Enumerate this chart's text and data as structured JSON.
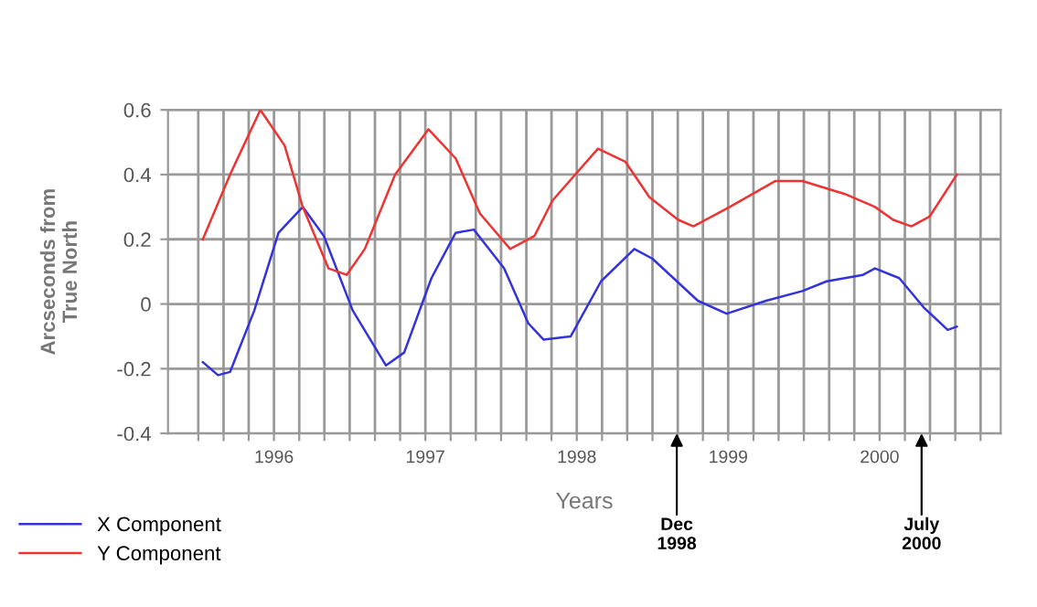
{
  "chart_data": {
    "type": "line",
    "xlabel": "Years",
    "ylabel": "Arcseconds from\nTrue North",
    "xlim": [
      1995.8,
      2001.3
    ],
    "ylim": [
      -0.4,
      0.6
    ],
    "yticks": [
      -0.4,
      -0.2,
      0,
      0.2,
      0.4,
      0.6
    ],
    "xticks": [
      {
        "value": 1996.0,
        "label": null
      },
      {
        "value": 1996.167,
        "label": null
      },
      {
        "value": 1996.333,
        "label": null
      },
      {
        "value": 1996.5,
        "label": "1996"
      },
      {
        "value": 1996.667,
        "label": null
      },
      {
        "value": 1996.833,
        "label": null
      },
      {
        "value": 1997.0,
        "label": null
      },
      {
        "value": 1997.167,
        "label": null
      },
      {
        "value": 1997.333,
        "label": null
      },
      {
        "value": 1997.5,
        "label": "1997"
      },
      {
        "value": 1997.667,
        "label": null
      },
      {
        "value": 1997.833,
        "label": null
      },
      {
        "value": 1998.0,
        "label": null
      },
      {
        "value": 1998.167,
        "label": null
      },
      {
        "value": 1998.333,
        "label": null
      },
      {
        "value": 1998.5,
        "label": "1998"
      },
      {
        "value": 1998.667,
        "label": null
      },
      {
        "value": 1998.833,
        "label": null
      },
      {
        "value": 1999.0,
        "label": null
      },
      {
        "value": 1999.167,
        "label": null
      },
      {
        "value": 1999.333,
        "label": null
      },
      {
        "value": 1999.5,
        "label": "1999"
      },
      {
        "value": 1999.667,
        "label": null
      },
      {
        "value": 1999.833,
        "label": null
      },
      {
        "value": 2000.0,
        "label": null
      },
      {
        "value": 2000.167,
        "label": null
      },
      {
        "value": 2000.333,
        "label": null
      },
      {
        "value": 2000.5,
        "label": "2000"
      },
      {
        "value": 2000.667,
        "label": null
      },
      {
        "value": 2000.833,
        "label": null
      },
      {
        "value": 2001.0,
        "label": null
      },
      {
        "value": 2001.167,
        "label": null
      }
    ],
    "grid": true,
    "legend": "bottom left",
    "marker": "none",
    "line_style": "solid",
    "annotations": [
      "Dec\n1998",
      "July\n2000"
    ],
    "series": [
      {
        "name": "X Component",
        "color": "#3333dd",
        "x": [
          1996.03,
          1996.13,
          1996.21,
          1996.37,
          1996.53,
          1996.69,
          1996.83,
          1997.02,
          1997.24,
          1997.36,
          1997.54,
          1997.7,
          1997.82,
          1998.02,
          1998.18,
          1998.28,
          1998.46,
          1998.66,
          1998.88,
          1999.0,
          1999.3,
          1999.49,
          1999.75,
          1999.99,
          2000.15,
          2000.39,
          2000.47,
          2000.63,
          2000.79,
          2000.95,
          2001.01
        ],
        "values": [
          -0.18,
          -0.22,
          -0.21,
          -0.02,
          0.22,
          0.3,
          0.21,
          -0.02,
          -0.19,
          -0.15,
          0.08,
          0.22,
          0.23,
          0.11,
          -0.06,
          -0.11,
          -0.1,
          0.07,
          0.17,
          0.14,
          0.01,
          -0.03,
          0.01,
          0.04,
          0.07,
          0.09,
          0.11,
          0.08,
          -0.01,
          -0.08,
          -0.07
        ]
      },
      {
        "name": "Y Component",
        "color": "#ee3333",
        "x": [
          1996.03,
          1996.21,
          1996.41,
          1996.57,
          1996.69,
          1996.86,
          1996.98,
          1997.1,
          1997.3,
          1997.52,
          1997.7,
          1997.86,
          1998.06,
          1998.22,
          1998.34,
          1998.64,
          1998.82,
          1998.98,
          1999.17,
          1999.27,
          1999.51,
          1999.81,
          1999.99,
          2000.27,
          2000.47,
          2000.59,
          2000.71,
          2000.83,
          2001.01
        ],
        "values": [
          0.2,
          0.4,
          0.6,
          0.49,
          0.3,
          0.11,
          0.09,
          0.17,
          0.4,
          0.54,
          0.45,
          0.28,
          0.17,
          0.21,
          0.32,
          0.48,
          0.44,
          0.33,
          0.26,
          0.24,
          0.3,
          0.38,
          0.38,
          0.34,
          0.3,
          0.26,
          0.24,
          0.27,
          0.4
        ]
      }
    ]
  }
}
